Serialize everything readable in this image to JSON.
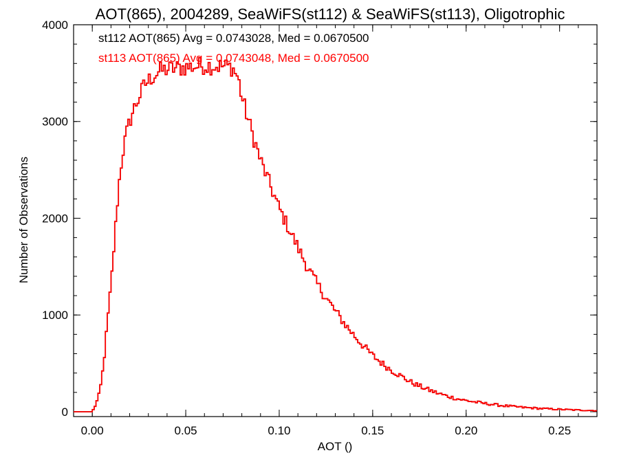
{
  "chart_data": {
    "type": "line",
    "title": "AOT(865), 2004289, SeaWiFS(st112) & SeaWiFS(st113), Oligotrophic",
    "xlabel": "AOT ()",
    "ylabel": "Number of Observations",
    "xlim": [
      -0.01,
      0.27
    ],
    "ylim": [
      -50,
      4000
    ],
    "x_ticks": [
      0.0,
      0.05,
      0.1,
      0.15,
      0.2,
      0.25
    ],
    "x_tick_labels": [
      "0.00",
      "0.05",
      "0.10",
      "0.15",
      "0.20",
      "0.25"
    ],
    "y_ticks": [
      0,
      1000,
      2000,
      3000,
      4000
    ],
    "y_tick_labels": [
      "0",
      "1000",
      "2000",
      "3000",
      "4000"
    ],
    "grid": false,
    "legend_position": "top-left",
    "annotations": [
      {
        "text": "st112 AOT(865) Avg = 0.0743028, Med = 0.0670500",
        "color": "#000000"
      },
      {
        "text": "st113 AOT(865) Avg = 0.0743048, Med = 0.0670500",
        "color": "#ff0000"
      }
    ],
    "step_hist": {
      "bin_width": 0.001,
      "curve_points": [
        [
          -0.01,
          0
        ],
        [
          0.0,
          0
        ],
        [
          0.002,
          80
        ],
        [
          0.004,
          200
        ],
        [
          0.006,
          480
        ],
        [
          0.008,
          900
        ],
        [
          0.01,
          1300
        ],
        [
          0.012,
          1800
        ],
        [
          0.014,
          2300
        ],
        [
          0.016,
          2650
        ],
        [
          0.018,
          2850
        ],
        [
          0.02,
          3000
        ],
        [
          0.022,
          3120
        ],
        [
          0.025,
          3250
        ],
        [
          0.028,
          3380
        ],
        [
          0.032,
          3460
        ],
        [
          0.036,
          3520
        ],
        [
          0.04,
          3540
        ],
        [
          0.05,
          3560
        ],
        [
          0.06,
          3580
        ],
        [
          0.07,
          3570
        ],
        [
          0.075,
          3560
        ],
        [
          0.078,
          3450
        ],
        [
          0.08,
          3250
        ],
        [
          0.083,
          3050
        ],
        [
          0.086,
          2850
        ],
        [
          0.09,
          2600
        ],
        [
          0.095,
          2350
        ],
        [
          0.1,
          2100
        ],
        [
          0.105,
          1900
        ],
        [
          0.11,
          1700
        ],
        [
          0.115,
          1500
        ],
        [
          0.12,
          1330
        ],
        [
          0.125,
          1180
        ],
        [
          0.13,
          1040
        ],
        [
          0.135,
          910
        ],
        [
          0.14,
          790
        ],
        [
          0.145,
          680
        ],
        [
          0.15,
          580
        ],
        [
          0.155,
          500
        ],
        [
          0.16,
          430
        ],
        [
          0.165,
          370
        ],
        [
          0.17,
          310
        ],
        [
          0.175,
          265
        ],
        [
          0.18,
          225
        ],
        [
          0.185,
          190
        ],
        [
          0.19,
          160
        ],
        [
          0.195,
          135
        ],
        [
          0.2,
          115
        ],
        [
          0.21,
          85
        ],
        [
          0.22,
          62
        ],
        [
          0.23,
          45
        ],
        [
          0.24,
          33
        ],
        [
          0.25,
          24
        ],
        [
          0.26,
          17
        ],
        [
          0.27,
          12
        ]
      ]
    },
    "series": [
      {
        "name": "st112",
        "color": "#000000"
      },
      {
        "name": "st113",
        "color": "#ff0000"
      }
    ]
  }
}
